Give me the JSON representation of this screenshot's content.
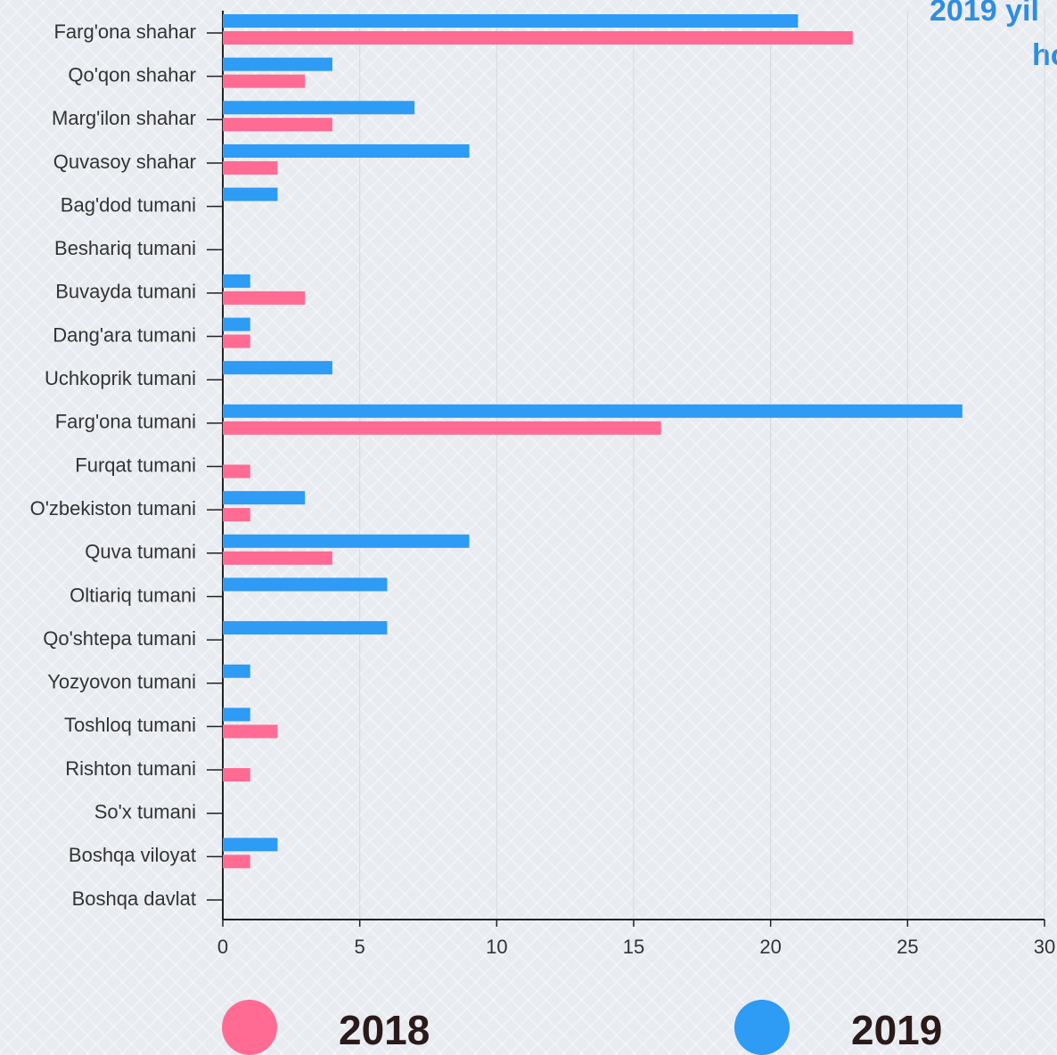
{
  "chart_data": {
    "type": "bar",
    "orientation": "horizontal",
    "title": "2019 yil",
    "subtitle": "ho",
    "categories": [
      "Farg'ona shahar",
      "Qo'qon shahar",
      "Marg'ilon shahar",
      "Quvasoy shahar",
      "Bag'dod tumani",
      "Beshariq tumani",
      "Buvayda tumani",
      "Dang'ara tumani",
      "Uchkoprik tumani",
      "Farg'ona tumani",
      "Furqat tumani",
      "O'zbekiston tumani",
      "Quva tumani",
      "Oltiariq tumani",
      "Qo'shtepa tumani",
      "Yozyovon tumani",
      "Toshloq tumani",
      "Rishton tumani",
      "So'x tumani",
      "Boshqa viloyat",
      "Boshqa davlat"
    ],
    "series": [
      {
        "name": "2018",
        "color": "#ff6b93",
        "values": [
          23,
          3,
          4,
          2,
          0,
          0,
          3,
          1,
          0,
          16,
          1,
          1,
          4,
          0,
          0,
          0,
          2,
          1,
          0,
          1,
          0
        ]
      },
      {
        "name": "2019",
        "color": "#2e9bf5",
        "values": [
          21,
          4,
          7,
          9,
          2,
          0,
          1,
          1,
          4,
          27,
          0,
          3,
          9,
          6,
          6,
          1,
          1,
          0,
          0,
          2,
          0
        ]
      }
    ],
    "xlim": [
      0,
      30
    ],
    "xticks": [
      0,
      5,
      10,
      15,
      20,
      25,
      30
    ],
    "grid": true,
    "legend": "bottom"
  }
}
